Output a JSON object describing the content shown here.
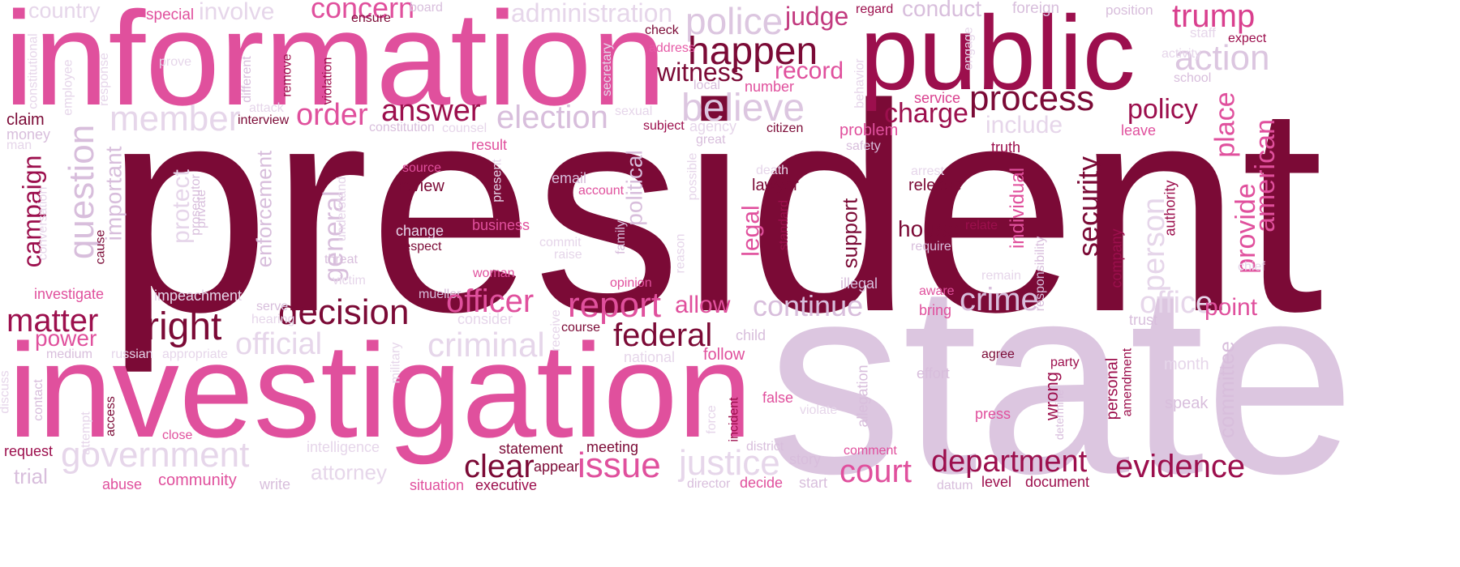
{
  "palette": {
    "dark": "#7b0a36",
    "deep": "#9c0f4d",
    "medium": "#d93f8e",
    "pink": "#e65aa6",
    "light": "#d8bedc",
    "pale": "#e6d6ea"
  },
  "words": [
    {
      "text": "president",
      "color": "#7b0a36"
    },
    {
      "text": "state",
      "color": "#dcc6e0"
    },
    {
      "text": "information",
      "color": "#e0509d"
    },
    {
      "text": "investigation",
      "color": "#e0509d"
    },
    {
      "text": "public",
      "color": "#9c0f4d"
    },
    {
      "text": "police",
      "color": "#dcc6e0"
    },
    {
      "text": "judge",
      "color": "#c23a7f"
    },
    {
      "text": "happen",
      "color": "#7b0a36"
    },
    {
      "text": "witness",
      "color": "#7b0a36"
    },
    {
      "text": "record",
      "color": "#e0509d"
    },
    {
      "text": "process",
      "color": "#7b0a36"
    },
    {
      "text": "charge",
      "color": "#9c0f4d"
    },
    {
      "text": "policy",
      "color": "#9c0f4d"
    },
    {
      "text": "trump",
      "color": "#d93f8e"
    },
    {
      "text": "action",
      "color": "#dcc6e0"
    },
    {
      "text": "believe",
      "color": "#dcc6e0"
    },
    {
      "text": "election",
      "color": "#d8bedc"
    },
    {
      "text": "answer",
      "color": "#9c0f4d"
    },
    {
      "text": "order",
      "color": "#e0509d"
    },
    {
      "text": "member",
      "color": "#e6d6ea"
    },
    {
      "text": "concern",
      "color": "#e0509d"
    },
    {
      "text": "administration",
      "color": "#e6d6ea"
    },
    {
      "text": "conduct",
      "color": "#d8bedc"
    },
    {
      "text": "country",
      "color": "#e6d6ea"
    },
    {
      "text": "involve",
      "color": "#e6d6ea"
    },
    {
      "text": "special",
      "color": "#e0509d"
    },
    {
      "text": "ensure",
      "color": "#7b0a36"
    },
    {
      "text": "board",
      "color": "#d8bedc"
    },
    {
      "text": "regard",
      "color": "#9c0f4d"
    },
    {
      "text": "foreign",
      "color": "#d8bedc"
    },
    {
      "text": "position",
      "color": "#d8bedc"
    },
    {
      "text": "staff",
      "color": "#e6d6ea"
    },
    {
      "text": "expect",
      "color": "#9c0f4d"
    },
    {
      "text": "check",
      "color": "#7b0a36"
    },
    {
      "text": "address",
      "color": "#e65aa6"
    },
    {
      "text": "local",
      "color": "#d8bedc"
    },
    {
      "text": "number",
      "color": "#e0509d"
    },
    {
      "text": "service",
      "color": "#d93f8e"
    },
    {
      "text": "include",
      "color": "#e6d6ea"
    },
    {
      "text": "leave",
      "color": "#e0509d"
    },
    {
      "text": "school",
      "color": "#d8bedc"
    },
    {
      "text": "activity",
      "color": "#e6d6ea"
    },
    {
      "text": "place",
      "color": "#e0509d"
    },
    {
      "text": "american",
      "color": "#e0509d"
    },
    {
      "text": "provide",
      "color": "#e0509d"
    },
    {
      "text": "authority",
      "color": "#9c0f4d"
    },
    {
      "text": "person",
      "color": "#e6d6ea"
    },
    {
      "text": "office",
      "color": "#e6d6ea"
    },
    {
      "text": "point",
      "color": "#e0509d"
    },
    {
      "text": "chief",
      "color": "#e6d6ea"
    },
    {
      "text": "trust",
      "color": "#d8bedc"
    },
    {
      "text": "committee",
      "color": "#d8bedc"
    },
    {
      "text": "month",
      "color": "#e6d6ea"
    },
    {
      "text": "speak",
      "color": "#d8bedc"
    },
    {
      "text": "evidence",
      "color": "#9c0f4d"
    },
    {
      "text": "department",
      "color": "#9c0f4d"
    },
    {
      "text": "court",
      "color": "#e0509d"
    },
    {
      "text": "document",
      "color": "#9c0f4d"
    },
    {
      "text": "level",
      "color": "#9c0f4d"
    },
    {
      "text": "datum",
      "color": "#d8bedc"
    },
    {
      "text": "wrong",
      "color": "#9c0f4d"
    },
    {
      "text": "personal",
      "color": "#9c0f4d"
    },
    {
      "text": "amendment",
      "color": "#9c0f4d"
    },
    {
      "text": "determine",
      "color": "#d8bedc"
    },
    {
      "text": "party",
      "color": "#9c0f4d"
    },
    {
      "text": "press",
      "color": "#e0509d"
    },
    {
      "text": "agree",
      "color": "#7b0a36"
    },
    {
      "text": "effort",
      "color": "#d8bedc"
    },
    {
      "text": "crime",
      "color": "#d8bedc"
    },
    {
      "text": "bring",
      "color": "#e0509d"
    },
    {
      "text": "aware",
      "color": "#e0509d"
    },
    {
      "text": "remain",
      "color": "#e6d6ea"
    },
    {
      "text": "responsibility",
      "color": "#d8bedc"
    },
    {
      "text": "company",
      "color": "#9c0f4d"
    },
    {
      "text": "security",
      "color": "#7b0a36"
    },
    {
      "text": "individual",
      "color": "#e0509d"
    },
    {
      "text": "relate",
      "color": "#9c0f4d"
    },
    {
      "text": "require",
      "color": "#d8bedc"
    },
    {
      "text": "house",
      "color": "#7b0a36"
    },
    {
      "text": "release",
      "color": "#7b0a36"
    },
    {
      "text": "arrest",
      "color": "#e6d6ea"
    },
    {
      "text": "truth",
      "color": "#9c0f4d"
    },
    {
      "text": "safety",
      "color": "#d8bedc"
    },
    {
      "text": "problem",
      "color": "#e0509d"
    },
    {
      "text": "citizen",
      "color": "#7b0a36"
    },
    {
      "text": "great",
      "color": "#d8bedc"
    },
    {
      "text": "agency",
      "color": "#e6d6ea"
    },
    {
      "text": "subject",
      "color": "#9c0f4d"
    },
    {
      "text": "sexual",
      "color": "#e6d6ea"
    },
    {
      "text": "political",
      "color": "#d8bedc"
    },
    {
      "text": "possible",
      "color": "#e6d6ea"
    },
    {
      "text": "death",
      "color": "#e6d6ea"
    },
    {
      "text": "lawyer",
      "color": "#7b0a36"
    },
    {
      "text": "legal",
      "color": "#e0509d"
    },
    {
      "text": "standard",
      "color": "#9c0f4d"
    },
    {
      "text": "support",
      "color": "#7b0a36"
    },
    {
      "text": "illegal",
      "color": "#d8bedc"
    },
    {
      "text": "allow",
      "color": "#e0509d"
    },
    {
      "text": "continue",
      "color": "#d8bedc"
    },
    {
      "text": "federal",
      "color": "#7b0a36"
    },
    {
      "text": "child",
      "color": "#d8bedc"
    },
    {
      "text": "follow",
      "color": "#e0509d"
    },
    {
      "text": "national",
      "color": "#e6d6ea"
    },
    {
      "text": "report",
      "color": "#e0509d"
    },
    {
      "text": "opinion",
      "color": "#e0509d"
    },
    {
      "text": "family",
      "color": "#d8bedc"
    },
    {
      "text": "reason",
      "color": "#e6d6ea"
    },
    {
      "text": "email",
      "color": "#d8bedc"
    },
    {
      "text": "account",
      "color": "#e0509d"
    },
    {
      "text": "present",
      "color": "#e6d6ea"
    },
    {
      "text": "source",
      "color": "#e0509d"
    },
    {
      "text": "review",
      "color": "#7b0a36"
    },
    {
      "text": "result",
      "color": "#e0509d"
    },
    {
      "text": "counsel",
      "color": "#e6d6ea"
    },
    {
      "text": "constitution",
      "color": "#d8bedc"
    },
    {
      "text": "interview",
      "color": "#7b0a36"
    },
    {
      "text": "claim",
      "color": "#7b0a36"
    },
    {
      "text": "money",
      "color": "#d8bedc"
    },
    {
      "text": "man",
      "color": "#e6d6ea"
    },
    {
      "text": "attack",
      "color": "#e6d6ea"
    },
    {
      "text": "campaign",
      "color": "#9c0f4d"
    },
    {
      "text": "question",
      "color": "#d8bedc"
    },
    {
      "text": "important",
      "color": "#d8bedc"
    },
    {
      "text": "conversation",
      "color": "#e6d6ea"
    },
    {
      "text": "cause",
      "color": "#7b0a36"
    },
    {
      "text": "protect",
      "color": "#e6d6ea"
    },
    {
      "text": "prosecutor",
      "color": "#d8bedc"
    },
    {
      "text": "private",
      "color": "#d8bedc"
    },
    {
      "text": "enforcement",
      "color": "#d8bedc"
    },
    {
      "text": "general",
      "color": "#d8bedc"
    },
    {
      "text": "understand",
      "color": "#e6d6ea"
    },
    {
      "text": "threat",
      "color": "#d8bedc"
    },
    {
      "text": "change",
      "color": "#e6d6ea"
    },
    {
      "text": "respect",
      "color": "#7b0a36"
    },
    {
      "text": "business",
      "color": "#e0509d"
    },
    {
      "text": "commit",
      "color": "#e6d6ea"
    },
    {
      "text": "raise",
      "color": "#e6d6ea"
    },
    {
      "text": "woman",
      "color": "#e0509d"
    },
    {
      "text": "victim",
      "color": "#e6d6ea"
    },
    {
      "text": "mueller",
      "color": "#d8bedc"
    },
    {
      "text": "investigate",
      "color": "#e0509d"
    },
    {
      "text": "impeachment",
      "color": "#e6d6ea"
    },
    {
      "text": "matter",
      "color": "#9c0f4d"
    },
    {
      "text": "right",
      "color": "#7b0a36"
    },
    {
      "text": "decision",
      "color": "#7b0a36"
    },
    {
      "text": "serve",
      "color": "#d8bedc"
    },
    {
      "text": "hearing",
      "color": "#e6d6ea"
    },
    {
      "text": "officer",
      "color": "#e0509d"
    },
    {
      "text": "consider",
      "color": "#e6d6ea"
    },
    {
      "text": "power",
      "color": "#e0509d"
    },
    {
      "text": "medium",
      "color": "#d8bedc"
    },
    {
      "text": "russian",
      "color": "#e6d6ea"
    },
    {
      "text": "appropriate",
      "color": "#e6d6ea"
    },
    {
      "text": "official",
      "color": "#e6d6ea"
    },
    {
      "text": "criminal",
      "color": "#e6d6ea"
    },
    {
      "text": "receive",
      "color": "#e6d6ea"
    },
    {
      "text": "course",
      "color": "#7b0a36"
    },
    {
      "text": "military",
      "color": "#e6d6ea"
    },
    {
      "text": "discuss",
      "color": "#e6d6ea"
    },
    {
      "text": "contact",
      "color": "#d8bedc"
    },
    {
      "text": "attempt",
      "color": "#e6d6ea"
    },
    {
      "text": "access",
      "color": "#7b0a36"
    },
    {
      "text": "close",
      "color": "#e0509d"
    },
    {
      "text": "request",
      "color": "#9c0f4d"
    },
    {
      "text": "trial",
      "color": "#d8bedc"
    },
    {
      "text": "government",
      "color": "#e6d6ea"
    },
    {
      "text": "intelligence",
      "color": "#e6d6ea"
    },
    {
      "text": "attorney",
      "color": "#e6d6ea"
    },
    {
      "text": "abuse",
      "color": "#e0509d"
    },
    {
      "text": "community",
      "color": "#e0509d"
    },
    {
      "text": "write",
      "color": "#d8bedc"
    },
    {
      "text": "situation",
      "color": "#e0509d"
    },
    {
      "text": "executive",
      "color": "#9c0f4d"
    },
    {
      "text": "director",
      "color": "#d8bedc"
    },
    {
      "text": "decide",
      "color": "#e0509d"
    },
    {
      "text": "start",
      "color": "#d8bedc"
    },
    {
      "text": "clear",
      "color": "#7b0a36"
    },
    {
      "text": "appear",
      "color": "#7b0a36"
    },
    {
      "text": "statement",
      "color": "#7b0a36"
    },
    {
      "text": "meeting",
      "color": "#7b0a36"
    },
    {
      "text": "issue",
      "color": "#e0509d"
    },
    {
      "text": "justice",
      "color": "#e6d6ea"
    },
    {
      "text": "district",
      "color": "#d8bedc"
    },
    {
      "text": "story",
      "color": "#d8bedc"
    },
    {
      "text": "comment",
      "color": "#e0509d"
    },
    {
      "text": "false",
      "color": "#e0509d"
    },
    {
      "text": "violate",
      "color": "#e6d6ea"
    },
    {
      "text": "allegation",
      "color": "#d8bedc"
    },
    {
      "text": "force",
      "color": "#e6d6ea"
    },
    {
      "text": "incident",
      "color": "#9c0f4d"
    },
    {
      "text": "constitutional",
      "color": "#e6d6ea"
    },
    {
      "text": "employee",
      "color": "#e6d6ea"
    },
    {
      "text": "response",
      "color": "#e6d6ea"
    },
    {
      "text": "prove",
      "color": "#e6d6ea"
    },
    {
      "text": "different",
      "color": "#d8bedc"
    },
    {
      "text": "remove",
      "color": "#9c0f4d"
    },
    {
      "text": "violation",
      "color": "#9c0f4d"
    },
    {
      "text": "secretary",
      "color": "#e6d6ea"
    },
    {
      "text": "engage",
      "color": "#e6d6ea"
    },
    {
      "text": "behavior",
      "color": "#e6d6ea"
    }
  ]
}
